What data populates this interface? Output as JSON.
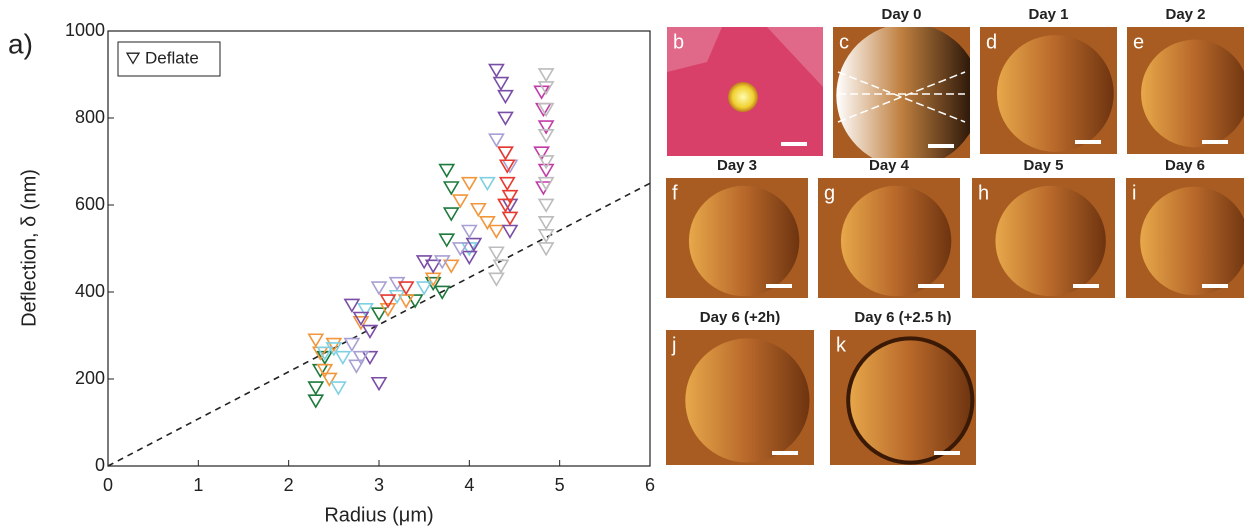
{
  "chart_data": {
    "type": "scatter",
    "panel_label": "a)",
    "xlabel": "Radius (μm)",
    "ylabel": "Deflection, δ (nm)",
    "xlim": [
      0,
      6
    ],
    "ylim": [
      0,
      1000
    ],
    "xticks": [
      0,
      1,
      2,
      3,
      4,
      5,
      6
    ],
    "yticks": [
      0,
      200,
      400,
      600,
      800,
      1000
    ],
    "grid": false,
    "legend": "Deflate",
    "legend_position": "upper left",
    "marker": "triangle-down",
    "fit_line": {
      "x": [
        0,
        6
      ],
      "y": [
        0,
        650
      ],
      "color": "#222"
    },
    "series": [
      {
        "color": "#1e7a3c",
        "x": [
          2.3,
          2.3,
          2.35,
          2.4,
          3.0,
          3.4,
          3.6,
          3.7,
          3.75,
          3.8,
          3.8,
          3.75
        ],
        "values": [
          150,
          180,
          220,
          250,
          350,
          380,
          420,
          400,
          520,
          580,
          640,
          680
        ]
      },
      {
        "color": "#f2963c",
        "x": [
          2.3,
          2.35,
          2.4,
          2.45,
          2.5,
          2.8,
          3.1,
          3.3,
          3.6,
          3.8,
          3.9,
          4.0,
          4.1,
          4.2,
          4.3
        ],
        "values": [
          290,
          260,
          220,
          200,
          280,
          330,
          360,
          380,
          430,
          460,
          610,
          650,
          590,
          560,
          540
        ]
      },
      {
        "color": "#7fd0e2",
        "x": [
          2.4,
          2.5,
          2.55,
          2.6,
          2.85,
          3.2,
          3.5,
          4.0,
          4.2
        ],
        "values": [
          260,
          270,
          180,
          250,
          360,
          390,
          410,
          500,
          650
        ]
      },
      {
        "color": "#7a4ea6",
        "x": [
          2.7,
          2.8,
          2.9,
          2.9,
          3.0,
          3.5,
          3.6,
          4.0,
          4.05,
          4.3,
          4.35,
          4.4,
          4.4,
          4.45,
          4.45
        ],
        "values": [
          370,
          340,
          310,
          250,
          190,
          470,
          460,
          480,
          510,
          910,
          880,
          850,
          800,
          600,
          540
        ]
      },
      {
        "color": "#a8a0d4",
        "x": [
          2.7,
          2.75,
          2.8,
          3.0,
          3.2,
          3.7,
          3.9,
          4.0,
          4.3,
          4.4,
          4.45
        ],
        "values": [
          280,
          230,
          250,
          410,
          420,
          470,
          500,
          540,
          750,
          720,
          690
        ]
      },
      {
        "color": "#e8392e",
        "x": [
          3.1,
          3.3,
          4.4,
          4.42,
          4.42,
          4.45,
          4.4,
          4.45
        ],
        "values": [
          380,
          410,
          720,
          690,
          650,
          620,
          600,
          570
        ]
      },
      {
        "color": "#c23ca8",
        "x": [
          4.8,
          4.82,
          4.85,
          4.8,
          4.85,
          4.82
        ],
        "values": [
          860,
          820,
          780,
          720,
          680,
          640
        ]
      },
      {
        "color": "#bcbcbc",
        "x": [
          4.3,
          4.35,
          4.3,
          4.85,
          4.85,
          4.85,
          4.85,
          4.85,
          4.85,
          4.85,
          4.85,
          4.85,
          4.85
        ],
        "values": [
          430,
          460,
          490,
          900,
          870,
          820,
          760,
          700,
          650,
          600,
          560,
          530,
          500
        ]
      }
    ]
  },
  "panels": [
    {
      "letter": "b"
    },
    {
      "letter": "c",
      "title": "Day 0"
    },
    {
      "letter": "d",
      "title": "Day 1"
    },
    {
      "letter": "e",
      "title": "Day 2"
    },
    {
      "letter": "f",
      "title": "Day 3"
    },
    {
      "letter": "g",
      "title": "Day 4"
    },
    {
      "letter": "h",
      "title": "Day 5"
    },
    {
      "letter": "i",
      "title": "Day 6"
    },
    {
      "letter": "j",
      "title": "Day 6 (+2h)"
    },
    {
      "letter": "k",
      "title": "Day 6 (+2.5 h)"
    }
  ]
}
